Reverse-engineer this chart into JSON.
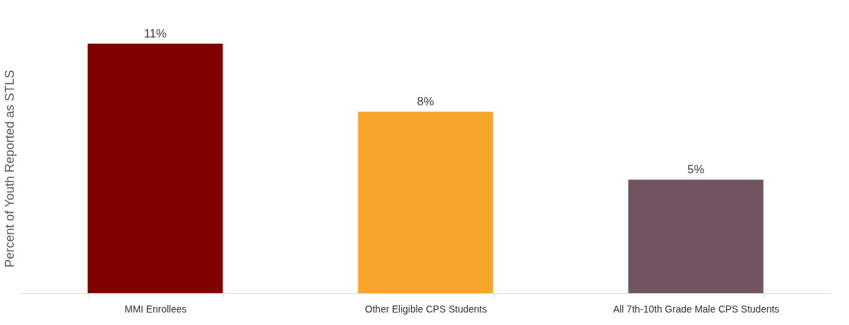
{
  "chart_data": {
    "type": "bar",
    "ylabel": "Percent of Youth Reported as STLS",
    "categories": [
      "MMI Enrollees",
      "Other Eligible CPS Students",
      "All 7th-10th Grade Male CPS Students"
    ],
    "values": [
      11,
      8,
      5
    ],
    "colors": [
      "#800000",
      "#f7a52b",
      "#725563"
    ],
    "value_labels": [
      "11%",
      "8%",
      "5%"
    ],
    "grid": false,
    "tick_labels": "x"
  }
}
